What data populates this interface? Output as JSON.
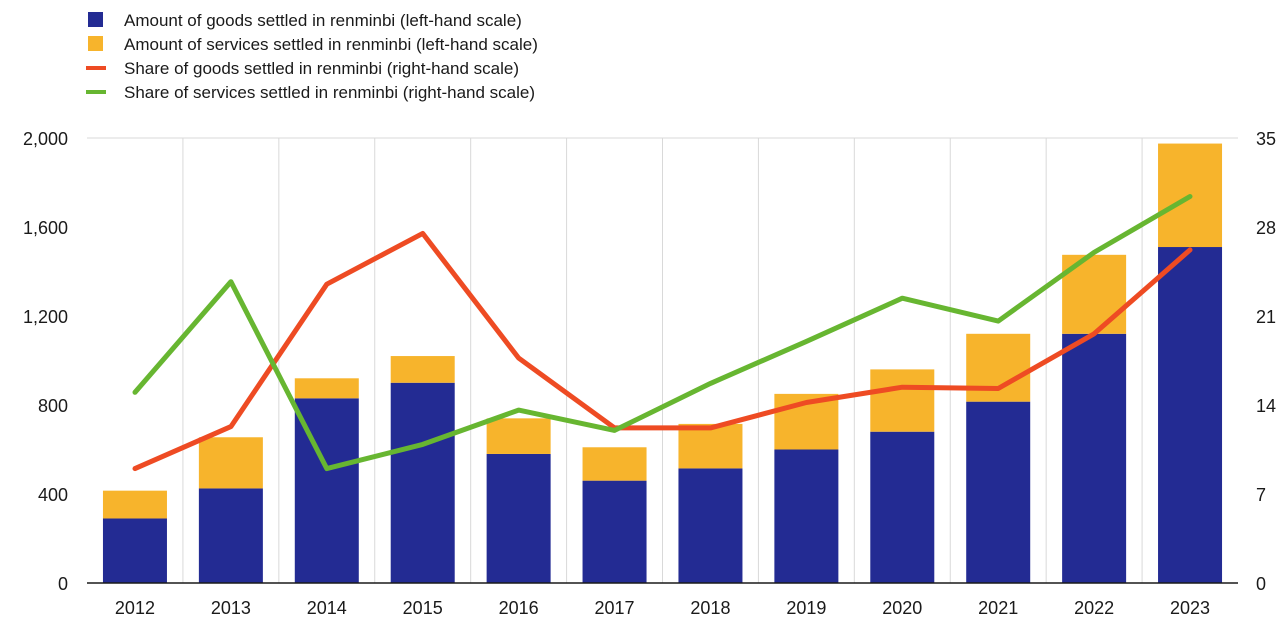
{
  "chart_data": {
    "type": "bar",
    "stacked": true,
    "categories": [
      "2012",
      "2013",
      "2014",
      "2015",
      "2016",
      "2017",
      "2018",
      "2019",
      "2020",
      "2021",
      "2022",
      "2023"
    ],
    "series": [
      {
        "name": "Amount of goods settled in renminbi (left-hand scale)",
        "kind": "bar",
        "axis": "left",
        "color": "#232b93",
        "values": [
          290,
          425,
          830,
          900,
          580,
          460,
          515,
          600,
          680,
          815,
          1120,
          1510
        ]
      },
      {
        "name": "Amount of services settled in renminbi (left-hand scale)",
        "kind": "bar",
        "axis": "left",
        "color": "#f7b42c",
        "values": [
          125,
          230,
          90,
          120,
          160,
          150,
          200,
          250,
          280,
          305,
          355,
          465
        ]
      },
      {
        "name": "Share of goods settled in renminbi (right-hand scale)",
        "kind": "line",
        "axis": "right",
        "color": "#ee4b23",
        "values": [
          9.0,
          12.3,
          23.5,
          27.5,
          17.7,
          12.2,
          12.2,
          14.2,
          15.4,
          15.3,
          19.6,
          26.2
        ]
      },
      {
        "name": "Share of services settled in renminbi (right-hand scale)",
        "kind": "line",
        "axis": "right",
        "color": "#67b631",
        "values": [
          15.0,
          23.7,
          9.0,
          10.9,
          13.6,
          12.0,
          15.7,
          19.0,
          22.4,
          20.6,
          26.0,
          30.4
        ]
      }
    ],
    "left_axis": {
      "min": 0,
      "max": 2000,
      "ticks": [
        0,
        400,
        800,
        1200,
        1600,
        2000
      ],
      "tick_labels": [
        "0",
        "400",
        "800",
        "1,200",
        "1,600",
        "2,000"
      ]
    },
    "right_axis": {
      "min": 0,
      "max": 35,
      "ticks": [
        0,
        7,
        14,
        21,
        28,
        35
      ],
      "tick_labels": [
        "0",
        "7",
        "14",
        "21",
        "28",
        "35"
      ]
    },
    "grid": "vertical",
    "legend_position": "top-left"
  }
}
